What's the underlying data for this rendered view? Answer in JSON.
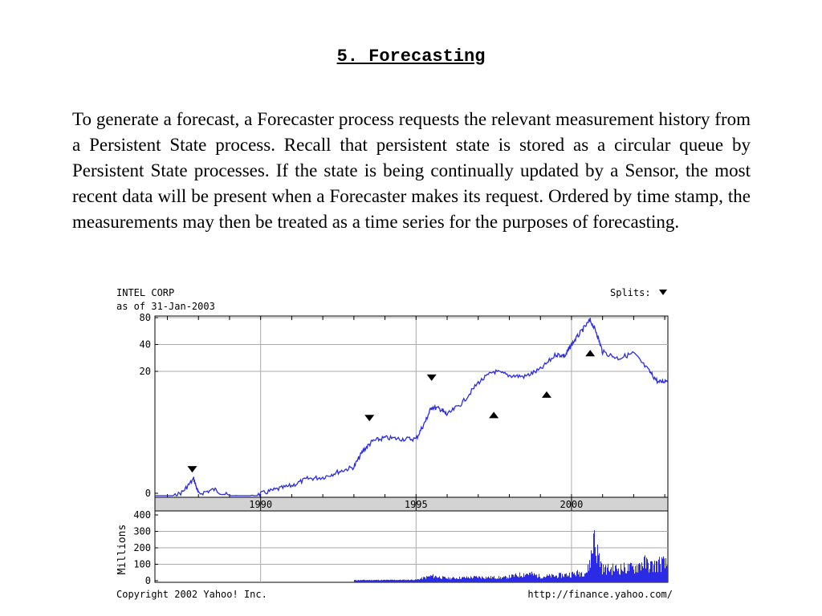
{
  "section": {
    "title": "5. Forecasting",
    "paragraph": "To generate a forecast, a Forecaster process requests the relevant measurement history from a Persistent State process. Recall that persistent state is stored as a circular queue by Persistent State processes. If the state is being continually updated by a Sensor, the most recent data will be present when a Forecaster makes its request. Ordered by time stamp, the measurements may then be treated as a time series for the purposes of forecasting."
  },
  "figure": {
    "company": "INTEL CORP",
    "as_of": "as of 31-Jan-2003",
    "splits_label": "Splits:",
    "copyright": "Copyright 2002 Yahoo! Inc.",
    "url": "http://finance.yahoo.com/"
  },
  "chart_data": [
    {
      "type": "line",
      "title": "INTEL CORP",
      "subtitle": "as of 31-Jan-2003",
      "scale": "log",
      "grid": true,
      "xlim": [
        1986.6,
        2003.1
      ],
      "ylim_display": [
        0,
        80
      ],
      "y_ticks": [
        0,
        20,
        40,
        80
      ],
      "x_ticks": [
        1990,
        1995,
        2000
      ],
      "x_tick_labels": [
        "1990",
        "1995",
        "2000"
      ],
      "series": [
        {
          "values_xy": [
            [
              1986.6,
              0.65
            ],
            [
              1987.0,
              0.72
            ],
            [
              1987.5,
              0.9
            ],
            [
              1987.85,
              1.25
            ],
            [
              1988.0,
              0.85
            ],
            [
              1988.5,
              0.95
            ],
            [
              1989.0,
              0.8
            ],
            [
              1989.5,
              0.72
            ],
            [
              1990.0,
              0.85
            ],
            [
              1990.5,
              0.95
            ],
            [
              1991.0,
              1.05
            ],
            [
              1991.5,
              1.25
            ],
            [
              1992.0,
              1.3
            ],
            [
              1992.5,
              1.5
            ],
            [
              1993.0,
              1.7
            ],
            [
              1993.3,
              2.6
            ],
            [
              1993.6,
              3.3
            ],
            [
              1994.0,
              3.6
            ],
            [
              1994.5,
              3.5
            ],
            [
              1995.0,
              3.5
            ],
            [
              1995.3,
              5.5
            ],
            [
              1995.5,
              8.0
            ],
            [
              1995.8,
              7.5
            ],
            [
              1996.0,
              6.5
            ],
            [
              1996.5,
              9.0
            ],
            [
              1997.0,
              15.0
            ],
            [
              1997.5,
              20.0
            ],
            [
              1998.0,
              18.0
            ],
            [
              1998.5,
              17.5
            ],
            [
              1999.0,
              21.0
            ],
            [
              1999.5,
              31.0
            ],
            [
              1999.8,
              30.0
            ],
            [
              2000.0,
              40.0
            ],
            [
              2000.3,
              55.0
            ],
            [
              2000.6,
              75.0
            ],
            [
              2000.8,
              55.0
            ],
            [
              2001.0,
              33.0
            ],
            [
              2001.5,
              28.0
            ],
            [
              2002.0,
              32.0
            ],
            [
              2002.5,
              20.0
            ],
            [
              2002.8,
              15.0
            ],
            [
              2003.1,
              16.0
            ]
          ]
        }
      ],
      "split_markers": [
        {
          "x": 1987.8,
          "y": 1.6,
          "direction": "down"
        },
        {
          "x": 1993.5,
          "y": 6.0,
          "direction": "down"
        },
        {
          "x": 1995.5,
          "y": 17.0,
          "direction": "down"
        },
        {
          "x": 1997.5,
          "y": 6.5,
          "direction": "up"
        },
        {
          "x": 1999.2,
          "y": 11.0,
          "direction": "up"
        },
        {
          "x": 2000.6,
          "y": 32.0,
          "direction": "up"
        }
      ]
    },
    {
      "type": "bar",
      "ylabel": "Millions",
      "y_ticks": [
        0,
        100,
        200,
        300,
        400
      ],
      "ylim": [
        0,
        400
      ],
      "xlim": [
        1986.6,
        2003.1
      ],
      "series": [
        {
          "values_xy": [
            [
              1993.0,
              5
            ],
            [
              1994.0,
              6
            ],
            [
              1995.0,
              8
            ],
            [
              1995.5,
              40
            ],
            [
              1996.0,
              20
            ],
            [
              1997.0,
              30
            ],
            [
              1997.8,
              25
            ],
            [
              1998.6,
              60
            ],
            [
              1999.0,
              35
            ],
            [
              1999.5,
              40
            ],
            [
              2000.0,
              55
            ],
            [
              2000.5,
              75
            ],
            [
              2000.72,
              310
            ],
            [
              2001.0,
              95
            ],
            [
              2001.5,
              100
            ],
            [
              2002.0,
              105
            ],
            [
              2002.3,
              150
            ],
            [
              2002.6,
              120
            ],
            [
              2002.9,
              150
            ],
            [
              2003.0,
              130
            ]
          ]
        }
      ]
    }
  ]
}
